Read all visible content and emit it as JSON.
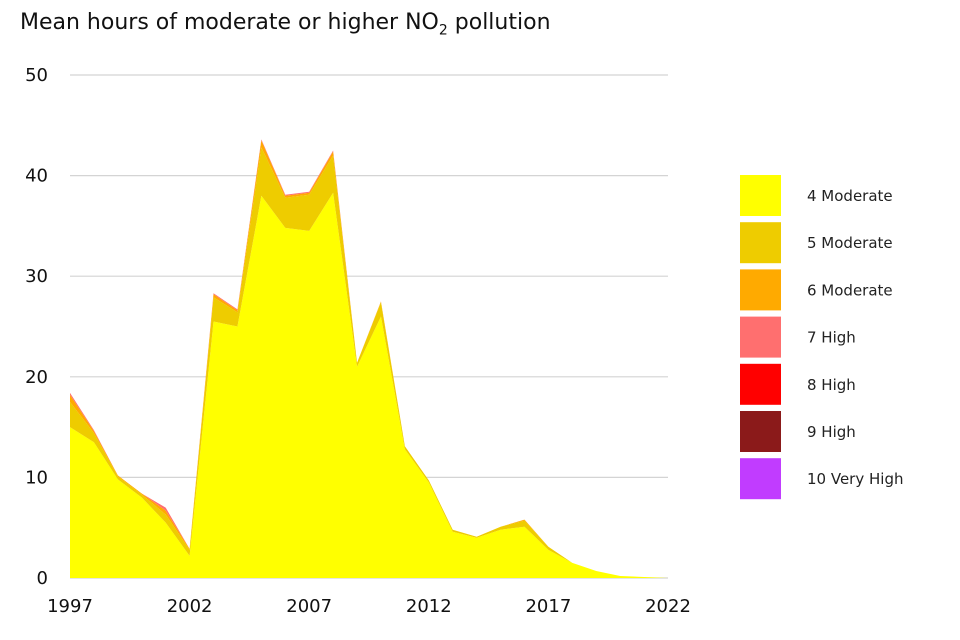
{
  "chart_data": {
    "type": "area",
    "stacked": true,
    "title": {
      "prefix": "Mean hours of moderate or higher NO",
      "subscript": "2",
      "suffix": " pollution"
    },
    "xlabel": "",
    "ylabel": "",
    "xlim": [
      1997,
      2022
    ],
    "ylim": [
      0,
      50
    ],
    "x_ticks": [
      1997,
      2002,
      2007,
      2012,
      2017,
      2022
    ],
    "y_ticks": [
      0,
      10,
      20,
      30,
      40,
      50
    ],
    "grid": "horizontal",
    "legend_position": "right",
    "x": [
      1997,
      1998,
      1999,
      2000,
      2001,
      2002,
      2003,
      2004,
      2005,
      2006,
      2007,
      2008,
      2009,
      2010,
      2011,
      2012,
      2013,
      2014,
      2015,
      2016,
      2017,
      2018,
      2019,
      2020,
      2021,
      2022
    ],
    "series": [
      {
        "name": "4 Moderate",
        "color": "#ffff00",
        "values": [
          15.0,
          13.5,
          9.8,
          8.0,
          5.5,
          2.2,
          25.5,
          25.0,
          38.0,
          34.8,
          34.5,
          38.3,
          21.0,
          26.0,
          12.8,
          9.5,
          4.6,
          4.0,
          4.8,
          5.1,
          2.8,
          1.5,
          0.7,
          0.2,
          0.1,
          0.0
        ]
      },
      {
        "name": "5 Moderate",
        "color": "#eecc00",
        "values": [
          2.5,
          0.9,
          0.3,
          0.3,
          0.8,
          0.6,
          2.4,
          1.4,
          4.8,
          3.0,
          3.6,
          3.7,
          0.4,
          1.4,
          0.3,
          0.2,
          0.2,
          0.1,
          0.3,
          0.6,
          0.3,
          0.0,
          0.0,
          0.0,
          0.0,
          0.0
        ]
      },
      {
        "name": "6 Moderate",
        "color": "#ffaa00",
        "values": [
          0.7,
          0.2,
          0.1,
          0.1,
          0.4,
          0.1,
          0.3,
          0.2,
          0.7,
          0.2,
          0.2,
          0.4,
          0.0,
          0.1,
          0.0,
          0.0,
          0.0,
          0.0,
          0.0,
          0.1,
          0.0,
          0.0,
          0.0,
          0.0,
          0.0,
          0.0
        ]
      },
      {
        "name": "7 High",
        "color": "#ff6f6f",
        "values": [
          0.2,
          0.1,
          0.0,
          0.0,
          0.3,
          0.0,
          0.1,
          0.1,
          0.1,
          0.1,
          0.1,
          0.1,
          0.0,
          0.0,
          0.0,
          0.0,
          0.0,
          0.0,
          0.0,
          0.0,
          0.0,
          0.0,
          0.0,
          0.0,
          0.0,
          0.0
        ]
      },
      {
        "name": "8 High",
        "color": "#ff0000",
        "values": [
          0,
          0,
          0,
          0,
          0,
          0,
          0,
          0,
          0,
          0,
          0,
          0,
          0,
          0,
          0,
          0,
          0,
          0,
          0,
          0,
          0,
          0,
          0,
          0,
          0,
          0
        ]
      },
      {
        "name": "9 High",
        "color": "#8b1a1a",
        "values": [
          0,
          0,
          0,
          0,
          0,
          0,
          0,
          0,
          0,
          0,
          0,
          0,
          0,
          0,
          0,
          0,
          0,
          0,
          0,
          0,
          0,
          0,
          0,
          0,
          0,
          0
        ]
      },
      {
        "name": "10 Very High",
        "color": "#c13cff",
        "values": [
          0,
          0,
          0,
          0,
          0,
          0,
          0,
          0,
          0,
          0,
          0,
          0,
          0,
          0,
          0,
          0,
          0,
          0,
          0,
          0,
          0,
          0,
          0,
          0,
          0,
          0
        ]
      }
    ]
  }
}
